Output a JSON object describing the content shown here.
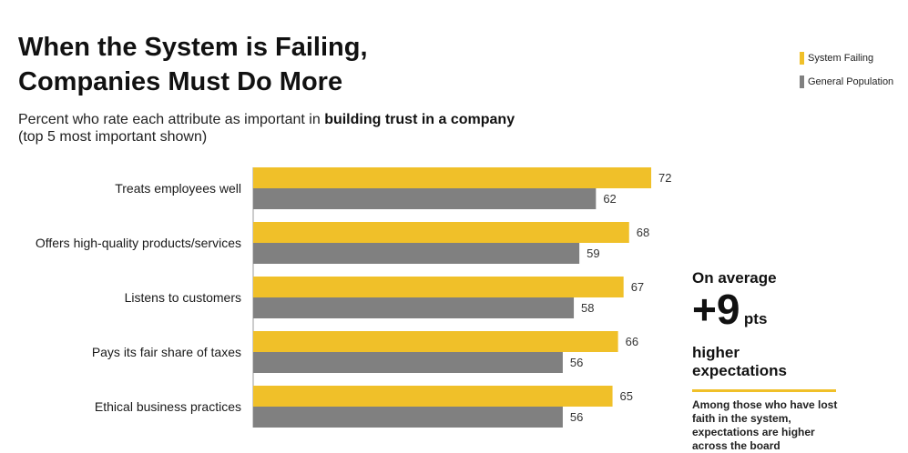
{
  "title_line1": "When the System is Failing,",
  "title_line2": "Companies Must Do More",
  "subtitle_prefix": "Percent who rate each attribute as important in ",
  "subtitle_bold": "building trust in a company",
  "subtitle_line2": "(top 5 most important shown)",
  "colors": {
    "system_failing": "#F0C029",
    "general_population": "#808080"
  },
  "chart_data": {
    "type": "bar",
    "orientation": "horizontal",
    "categories": [
      "Treats employees well",
      "Offers high-quality products/services",
      "Listens to customers",
      "Pays its fair share of taxes",
      "Ethical business practices"
    ],
    "series": [
      {
        "name": "System Failing",
        "values": [
          72,
          68,
          67,
          66,
          65
        ]
      },
      {
        "name": "General Population",
        "values": [
          62,
          59,
          58,
          56,
          56
        ]
      }
    ],
    "xlim": [
      0,
      100
    ],
    "legend": "top-right",
    "grid": false
  },
  "callout": {
    "top": "On average",
    "big": "+9",
    "unit": "pts",
    "sub": "higher expectations",
    "note": "Among those who have lost faith in the system, expectations are higher across the board"
  }
}
